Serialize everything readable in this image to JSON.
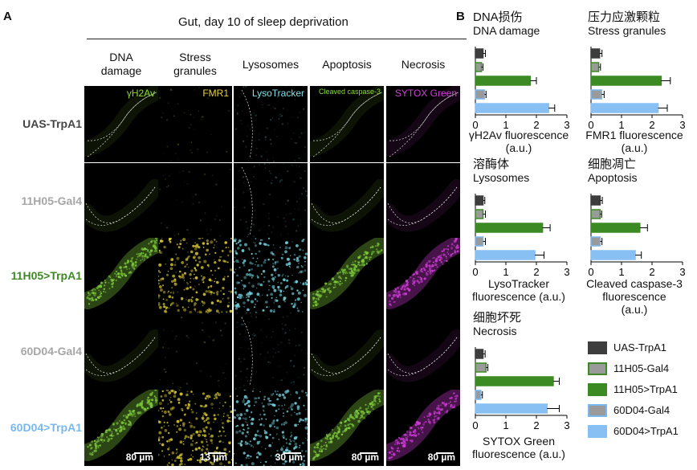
{
  "panel_a": {
    "letter": "A",
    "heading": "Gut, day 10 of sleep deprivation",
    "columns": [
      {
        "title_line1": "DNA",
        "title_line2": "damage",
        "stain": "γH2Av",
        "stain_color": "#8edb3c",
        "scale": "80 µm"
      },
      {
        "title_line1": "Stress",
        "title_line2": "granules",
        "stain": "FMR1",
        "stain_color": "#e8d23a",
        "scale": "13 µm"
      },
      {
        "title_line1": "Lysosomes",
        "title_line2": "",
        "stain": "LysoTracker",
        "stain_color": "#7fe0e8",
        "scale": "30 µm"
      },
      {
        "title_line1": "Apoptosis",
        "title_line2": "",
        "stain": "Cleaved caspase-3",
        "stain_color": "#8edb3c",
        "scale": "80 µm"
      },
      {
        "title_line1": "Necrosis",
        "title_line2": "",
        "stain": "SYTOX Green",
        "stain_color": "#d040d8",
        "scale": "80 µm"
      }
    ],
    "rows": [
      {
        "label": "UAS-TrpA1",
        "color": "#444444",
        "active": false
      },
      {
        "label": "11H05-Gal4",
        "color": "#a6a6a6",
        "active": false
      },
      {
        "label": "11H05>TrpA1",
        "color": "#3c8a23",
        "active": true
      },
      {
        "label": "60D04-Gal4",
        "color": "#a6a6a6",
        "active": false
      },
      {
        "label": "60D04>TrpA1",
        "color": "#78b8f0",
        "active": true
      }
    ],
    "tile_colors": [
      "#7cc73a",
      "#d8c830",
      "#6fd0dc",
      "#7cc73a",
      "#c83ad0"
    ]
  },
  "panel_b": {
    "letter": "B",
    "legend": [
      {
        "label": "UAS-TrpA1",
        "fill": "#3d3d3d",
        "border": "#3d3d3d"
      },
      {
        "label": "11H05-Gal4",
        "fill": "#9a9a9a",
        "border": "#3c8a23"
      },
      {
        "label": "11H05>TrpA1",
        "fill": "#3c8a23",
        "border": "#3c8a23"
      },
      {
        "label": "60D04-Gal4",
        "fill": "#9a9a9a",
        "border": "#78b8f0"
      },
      {
        "label": "60D04>TrpA1",
        "fill": "#88c0f4",
        "border": "#88c0f4"
      }
    ]
  },
  "chart_data": [
    {
      "type": "bar",
      "orientation": "horizontal",
      "title_zh": "DNA损伤",
      "title": "DNA damage",
      "xlabel_line1": "γH2Av fluorescence",
      "xlabel_line2": "(a.u.)",
      "xlabel_line3": "",
      "categories": [
        "UAS-TrpA1",
        "11H05-Gal4",
        "11H05>TrpA1",
        "60D04-Gal4",
        "60D04>TrpA1"
      ],
      "values": [
        0.25,
        0.2,
        1.8,
        0.3,
        2.4
      ],
      "errors": [
        0.08,
        0.05,
        0.2,
        0.05,
        0.2
      ],
      "xlim": [
        0,
        3
      ],
      "xticks": [
        "0",
        "1",
        "2",
        "3"
      ]
    },
    {
      "type": "bar",
      "orientation": "horizontal",
      "title_zh": "压力应激颗粒",
      "title": "Stress granules",
      "xlabel_line1": "FMR1 fluorescence",
      "xlabel_line2": "(a.u.)",
      "xlabel_line3": "",
      "categories": [
        "UAS-TrpA1",
        "11H05-Gal4",
        "11H05>TrpA1",
        "60D04-Gal4",
        "60D04>TrpA1"
      ],
      "values": [
        0.28,
        0.25,
        2.3,
        0.35,
        2.2
      ],
      "errors": [
        0.08,
        0.06,
        0.3,
        0.08,
        0.3
      ],
      "xlim": [
        0,
        3
      ],
      "xticks": [
        "0",
        "1",
        "2",
        "3"
      ]
    },
    {
      "type": "bar",
      "orientation": "horizontal",
      "title_zh": "溶酶体",
      "title": "Lysosomes",
      "xlabel_line1": "LysoTracker",
      "xlabel_line2": "fluorescence (a.u.)",
      "xlabel_line3": "",
      "categories": [
        "UAS-TrpA1",
        "11H05-Gal4",
        "11H05>TrpA1",
        "60D04-Gal4",
        "60D04>TrpA1"
      ],
      "values": [
        0.25,
        0.25,
        2.2,
        0.25,
        1.95
      ],
      "errors": [
        0.06,
        0.08,
        0.25,
        0.08,
        0.3
      ],
      "xlim": [
        0,
        3
      ],
      "xticks": [
        "0",
        "1",
        "2",
        "3"
      ]
    },
    {
      "type": "bar",
      "orientation": "horizontal",
      "title_zh": "细胞凋亡",
      "title": "Apoptosis",
      "xlabel_line1": "Cleaved caspase-3",
      "xlabel_line2": "fluorescence",
      "xlabel_line3": "(a.u.)",
      "categories": [
        "UAS-TrpA1",
        "11H05-Gal4",
        "11H05>TrpA1",
        "60D04-Gal4",
        "60D04>TrpA1"
      ],
      "values": [
        0.3,
        0.3,
        1.6,
        0.3,
        1.45
      ],
      "errors": [
        0.07,
        0.05,
        0.25,
        0.06,
        0.2
      ],
      "xlim": [
        0,
        3
      ],
      "xticks": [
        "0",
        "1",
        "2",
        "3"
      ]
    },
    {
      "type": "bar",
      "orientation": "horizontal",
      "title_zh": "细胞坏死",
      "title": "Necrosis",
      "xlabel_line1": "SYTOX Green",
      "xlabel_line2": "fluorescence (a.u.)",
      "xlabel_line3": "",
      "categories": [
        "UAS-TrpA1",
        "11H05-Gal4",
        "11H05>TrpA1",
        "60D04-Gal4",
        "60D04>TrpA1"
      ],
      "values": [
        0.25,
        0.35,
        2.55,
        0.18,
        2.35
      ],
      "errors": [
        0.07,
        0.06,
        0.2,
        0.05,
        0.4
      ],
      "xlim": [
        0,
        3
      ],
      "xticks": [
        "0",
        "1",
        "2",
        "3"
      ]
    }
  ]
}
